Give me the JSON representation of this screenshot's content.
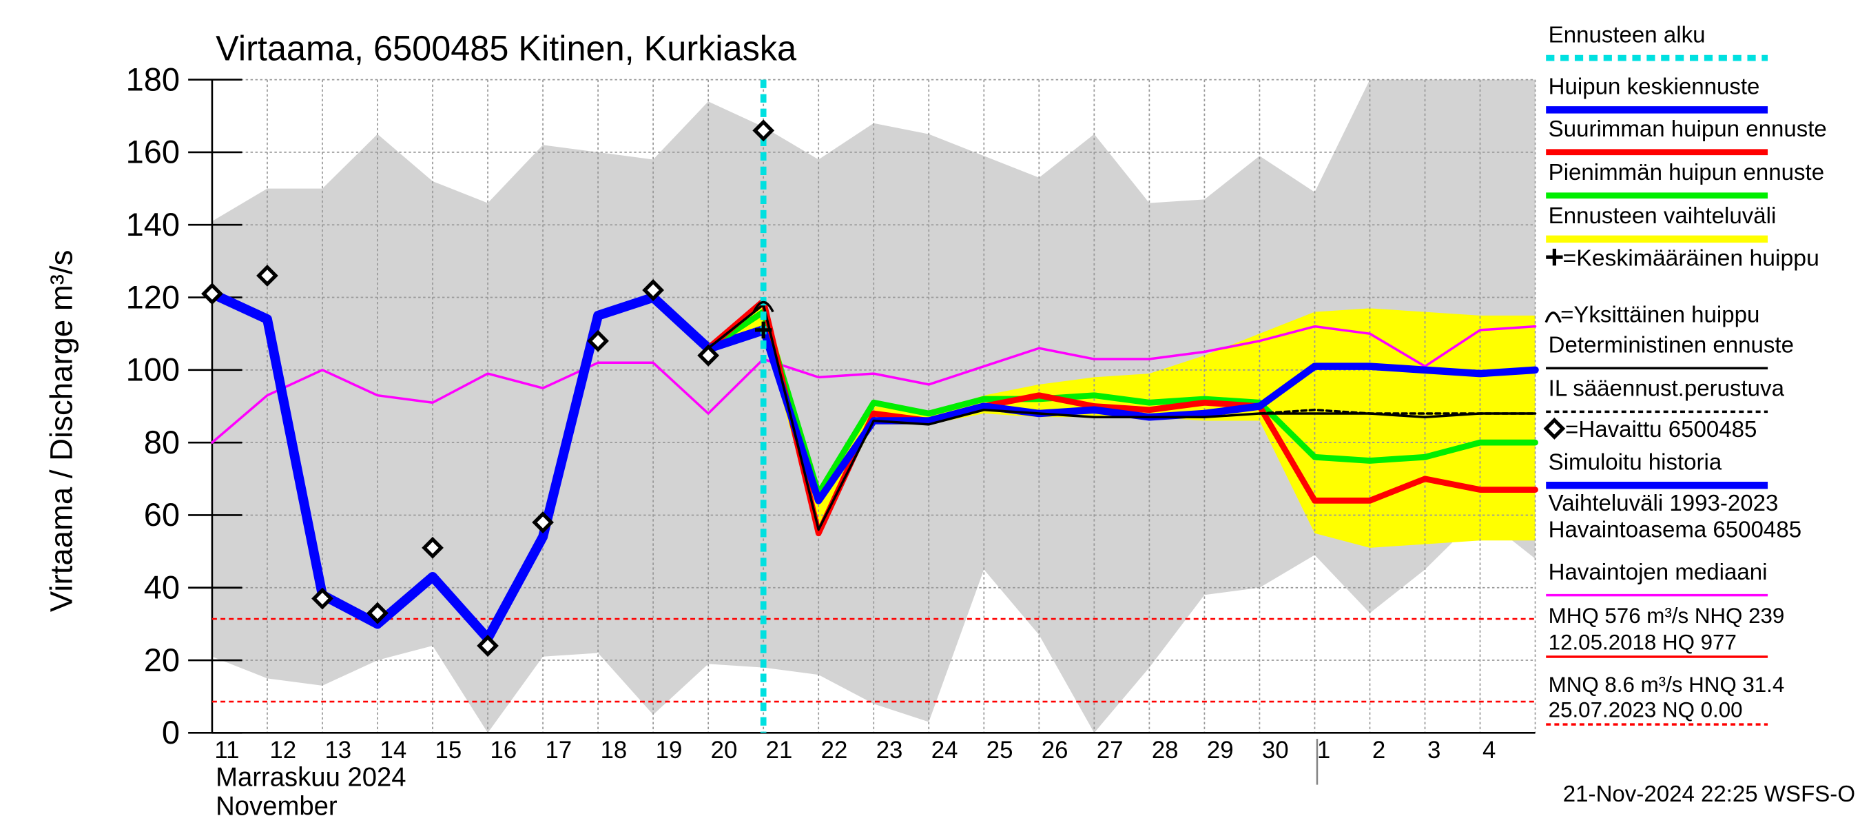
{
  "chart_data": {
    "type": "line",
    "title": "Virtaama, 6500485 Kitinen, Kurkiaska",
    "y_label": "Virtaama / Discharge   m³/s",
    "x_label_1": "Marraskuu 2024",
    "x_label_2": "November",
    "footer": "21-Nov-2024 22:25 WSFS-O",
    "categories": [
      "11",
      "12",
      "13",
      "14",
      "15",
      "16",
      "17",
      "18",
      "19",
      "20",
      "21",
      "22",
      "23",
      "24",
      "25",
      "26",
      "27",
      "28",
      "29",
      "30",
      "1",
      "2",
      "3",
      "4",
      null
    ],
    "ylim": [
      0,
      180
    ],
    "yticks": [
      0,
      20,
      40,
      60,
      80,
      100,
      120,
      140,
      160,
      180
    ],
    "grid": true,
    "series": [
      {
        "name": "Ennusteen alku",
        "color": "#00e0e0",
        "style": "vline",
        "index": 10
      },
      {
        "name": "Huipun keskiennuste",
        "color": "#0000ff",
        "style": "line",
        "width": 6,
        "values": [
          null,
          null,
          null,
          null,
          null,
          null,
          null,
          null,
          null,
          106,
          111,
          64,
          86,
          86,
          90,
          88,
          89,
          87,
          88,
          90,
          101,
          101,
          100,
          99,
          100
        ]
      },
      {
        "name": "Suurimman huipun ennuste",
        "color": "#ff0000",
        "style": "line",
        "width": 5,
        "values": [
          null,
          null,
          null,
          null,
          null,
          null,
          null,
          null,
          null,
          106,
          119,
          55,
          88,
          86,
          90,
          93,
          90,
          89,
          91,
          90,
          64,
          64,
          70,
          67,
          67
        ]
      },
      {
        "name": "Pienimmän huipun ennuste",
        "color": "#00ee00",
        "style": "line",
        "width": 5,
        "values": [
          null,
          null,
          null,
          null,
          null,
          null,
          null,
          null,
          null,
          106,
          116,
          66,
          91,
          88,
          92,
          92,
          93,
          91,
          92,
          91,
          76,
          75,
          76,
          80,
          80
        ]
      },
      {
        "name": "Ennusteen vaihteluväli",
        "color": "#ffff00",
        "style": "band",
        "low": [
          null,
          null,
          null,
          null,
          null,
          null,
          null,
          null,
          null,
          106,
          110,
          56,
          85,
          85,
          88,
          87,
          87,
          87,
          86,
          86,
          55,
          51,
          52,
          53,
          53
        ],
        "high": [
          null,
          null,
          null,
          null,
          null,
          null,
          null,
          null,
          null,
          106,
          120,
          67,
          90,
          88,
          93,
          96,
          98,
          99,
          104,
          110,
          116,
          117,
          116,
          115,
          115
        ]
      },
      {
        "name": "=Keskimääräinen huippu",
        "color": "#000000",
        "style": "plus",
        "values": [
          null,
          null,
          null,
          null,
          null,
          null,
          null,
          null,
          null,
          null,
          111,
          null,
          null,
          null,
          null,
          null,
          null,
          null,
          null,
          null,
          null,
          null,
          null,
          null,
          null
        ]
      },
      {
        "name": "=Yksittäinen huippu",
        "color": "#000000",
        "style": "arc",
        "values": [
          null,
          null,
          null,
          null,
          null,
          null,
          null,
          null,
          null,
          null,
          118,
          null,
          null,
          null,
          null,
          null,
          null,
          null,
          null,
          null,
          null,
          null,
          null,
          null,
          null
        ]
      },
      {
        "name": "Deterministinen ennuste",
        "color": "#000000",
        "style": "line",
        "width": 2,
        "values": [
          null,
          null,
          null,
          null,
          null,
          null,
          null,
          null,
          null,
          106,
          118,
          56,
          86,
          85,
          89,
          88,
          87,
          87,
          87,
          88,
          88,
          88,
          87,
          88,
          88
        ]
      },
      {
        "name": "IL sääennust.perustuva",
        "color": "#000000",
        "style": "dashed",
        "width": 2,
        "values": [
          null,
          null,
          null,
          null,
          null,
          null,
          null,
          null,
          null,
          null,
          null,
          null,
          null,
          null,
          null,
          null,
          null,
          null,
          null,
          88,
          89,
          88,
          88,
          88,
          88
        ]
      },
      {
        "name": "=Havaittu 6500485",
        "color": "#000000",
        "style": "diamond",
        "values": [
          121,
          126,
          37,
          33,
          51,
          24,
          58,
          108,
          122,
          104,
          166,
          null,
          null,
          null,
          null,
          null,
          null,
          null,
          null,
          null,
          null,
          null,
          null,
          null,
          null
        ]
      },
      {
        "name": "Simuloitu historia",
        "color": "#0000ff",
        "style": "line",
        "width": 8,
        "values": [
          121,
          114,
          38,
          30,
          43,
          26,
          54,
          115,
          120,
          106,
          111,
          null,
          null,
          null,
          null,
          null,
          null,
          null,
          null,
          null,
          null,
          null,
          null,
          null,
          null
        ]
      },
      {
        "name": "Vaihteluväli 1993-2023",
        "name_line2": " Havaintoasema 6500485",
        "color": "#d3d3d3",
        "style": "range",
        "low": [
          21,
          15,
          13,
          20,
          24,
          0,
          21,
          22,
          5,
          19,
          18,
          16,
          8,
          3,
          45,
          27,
          0,
          18,
          38,
          40,
          49,
          33,
          45,
          60,
          48
        ],
        "high": [
          141,
          150,
          150,
          165,
          152,
          146,
          162,
          160,
          158,
          174,
          167,
          158,
          168,
          165,
          159,
          153,
          165,
          146,
          147,
          159,
          149,
          180,
          180,
          180,
          180
        ]
      },
      {
        "name": "Havaintojen mediaani",
        "color": "#ff00ff",
        "style": "line",
        "width": 2,
        "values": [
          80,
          93,
          100,
          93,
          91,
          99,
          95,
          102,
          102,
          88,
          103,
          98,
          99,
          96,
          101,
          106,
          103,
          103,
          105,
          108,
          112,
          110,
          101,
          111,
          112
        ]
      }
    ],
    "statistics": [
      "MHQ  576 m³/s NHQ  239",
      "12.05.2018 HQ  977",
      "MNQ  8.6 m³/s HNQ 31.4",
      "25.07.2023 NQ 0.00"
    ],
    "ref_lines": [
      31.4,
      8.6
    ],
    "ref_color": "#ff0000"
  }
}
